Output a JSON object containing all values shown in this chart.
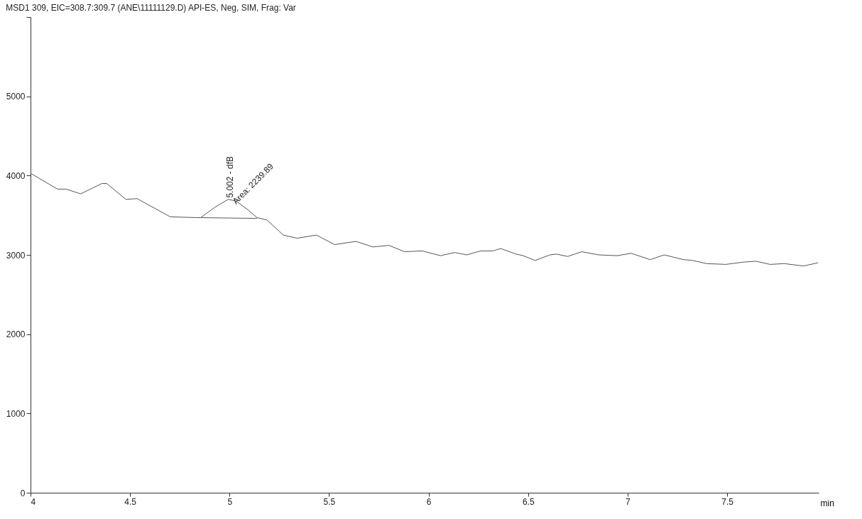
{
  "chart_data": {
    "type": "line",
    "title": "MSD1 309, EIC=308.7:309.7 (ANE\\11111129.D)    API-ES, Neg, SIM, Frag: Var",
    "xlabel": "min",
    "xlim": [
      4,
      7.96
    ],
    "xticks": [
      4,
      4.5,
      5,
      5.5,
      6,
      6.5,
      7,
      7.5
    ],
    "ylim": [
      0,
      6000
    ],
    "yticks": [
      0,
      1000,
      2000,
      3000,
      4000,
      5000,
      {
        "value": 6000,
        "label": null
      }
    ],
    "grid": false,
    "series": [
      {
        "color": "#555555",
        "x": [
          4.0,
          4.135,
          4.177,
          4.252,
          4.358,
          4.383,
          4.479,
          4.535,
          4.702,
          4.833,
          4.855,
          4.926,
          4.993,
          5.032,
          5.092,
          5.138,
          5.188,
          5.27,
          5.34,
          5.436,
          5.528,
          5.635,
          5.72,
          5.801,
          5.879,
          5.968,
          6.06,
          6.131,
          6.191,
          6.262,
          6.323,
          6.362,
          6.44,
          6.475,
          6.535,
          6.61,
          6.642,
          6.699,
          6.77,
          6.855,
          6.947,
          7.018,
          7.113,
          7.184,
          7.28,
          7.326,
          7.397,
          7.493,
          7.585,
          7.645,
          7.716,
          7.787,
          7.883,
          7.957
        ],
        "values": [
          4030,
          3830,
          3830,
          3770,
          3900,
          3900,
          3700,
          3710,
          3480,
          3470,
          3470,
          3600,
          3700,
          3680,
          3570,
          3470,
          3440,
          3250,
          3210,
          3250,
          3130,
          3170,
          3100,
          3120,
          3040,
          3050,
          2990,
          3030,
          3000,
          3050,
          3050,
          3080,
          3010,
          2990,
          2930,
          3000,
          3010,
          2980,
          3040,
          3000,
          2990,
          3020,
          2940,
          3000,
          2940,
          2930,
          2890,
          2880,
          2910,
          2920,
          2880,
          2890,
          2860,
          2900
        ]
      },
      {
        "type": "line",
        "color": "#555555",
        "x": [
          4.855,
          5.138
        ],
        "values": [
          3470,
          3460
        ]
      }
    ],
    "annotations": [
      {
        "text": "5.002 - dfB",
        "x": 5.002,
        "y": 3720
      },
      {
        "text": "Area: 2239.89",
        "x": 5.01,
        "y": 3690
      }
    ]
  }
}
